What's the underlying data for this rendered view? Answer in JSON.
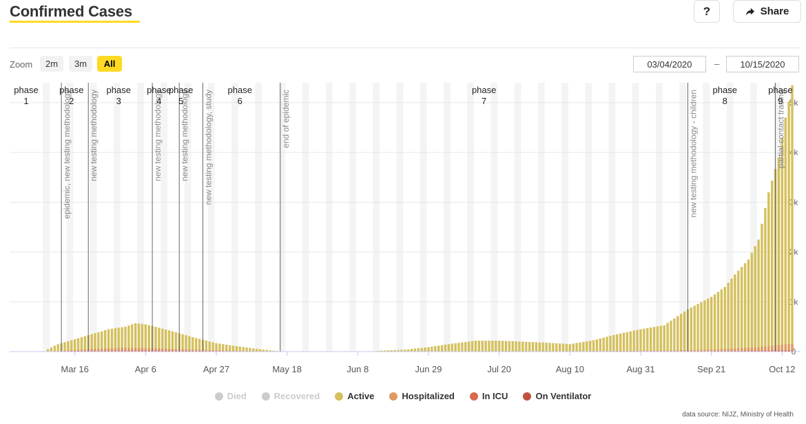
{
  "header": {
    "title": "Confirmed Cases",
    "help_label": "?",
    "share_label": "Share",
    "accent_color": "#ffd922"
  },
  "zoom": {
    "label": "Zoom",
    "buttons": [
      "2m",
      "3m",
      "All"
    ],
    "selected": "All"
  },
  "range": {
    "from": "03/04/2020",
    "separator": "–",
    "to": "10/15/2020"
  },
  "source": "data source: NIJZ, Ministry of Health",
  "chart_data": {
    "type": "bar",
    "stacked": true,
    "x_axis": {
      "start_date": "2020-03-04",
      "end_date": "2020-10-15",
      "tick_labels": [
        {
          "label": "Mar 16",
          "date": "2020-03-16"
        },
        {
          "label": "Apr 6",
          "date": "2020-04-06"
        },
        {
          "label": "Apr 27",
          "date": "2020-04-27"
        },
        {
          "label": "May 18",
          "date": "2020-05-18"
        },
        {
          "label": "Jun 8",
          "date": "2020-06-08"
        },
        {
          "label": "Jun 29",
          "date": "2020-06-29"
        },
        {
          "label": "Jul 20",
          "date": "2020-07-20"
        },
        {
          "label": "Aug 10",
          "date": "2020-08-10"
        },
        {
          "label": "Aug 31",
          "date": "2020-08-31"
        },
        {
          "label": "Sep 21",
          "date": "2020-09-21"
        },
        {
          "label": "Oct 12",
          "date": "2020-10-12"
        }
      ]
    },
    "y_axis": {
      "position": "right",
      "ylim": [
        0,
        5400
      ],
      "ticks": [
        {
          "value": 0,
          "label": "0"
        },
        {
          "value": 1000,
          "label": "1k"
        },
        {
          "value": 2000,
          "label": "2k"
        },
        {
          "value": 3000,
          "label": "3k"
        },
        {
          "value": 4000,
          "label": "4k"
        },
        {
          "value": 5000,
          "label": "5k"
        }
      ]
    },
    "grid": true,
    "weekend_shading": true,
    "legend_position": "bottom-center",
    "legend": [
      {
        "name": "Died",
        "color": "#cccccc",
        "enabled": false
      },
      {
        "name": "Recovered",
        "color": "#cccccc",
        "enabled": false
      },
      {
        "name": "Active",
        "color": "#d4c05c",
        "enabled": true
      },
      {
        "name": "Hospitalized",
        "color": "#de9a5f",
        "enabled": true
      },
      {
        "name": "In ICU",
        "color": "#d86a4f",
        "enabled": true
      },
      {
        "name": "On Ventilator",
        "color": "#bf5340",
        "enabled": true
      }
    ],
    "active_keypoints": [
      [
        "2020-03-04",
        0
      ],
      [
        "2020-03-07",
        0
      ],
      [
        "2020-03-08",
        50
      ],
      [
        "2020-03-11",
        150
      ],
      [
        "2020-03-16",
        250
      ],
      [
        "2020-03-21",
        350
      ],
      [
        "2020-03-26",
        450
      ],
      [
        "2020-03-31",
        500
      ],
      [
        "2020-04-03",
        570
      ],
      [
        "2020-04-06",
        550
      ],
      [
        "2020-04-10",
        480
      ],
      [
        "2020-04-15",
        390
      ],
      [
        "2020-04-20",
        290
      ],
      [
        "2020-04-27",
        170
      ],
      [
        "2020-05-04",
        100
      ],
      [
        "2020-05-11",
        40
      ],
      [
        "2020-05-16",
        5
      ],
      [
        "2020-05-18",
        0
      ],
      [
        "2020-06-12",
        0
      ],
      [
        "2020-06-15",
        20
      ],
      [
        "2020-06-22",
        40
      ],
      [
        "2020-06-29",
        90
      ],
      [
        "2020-07-06",
        160
      ],
      [
        "2020-07-13",
        220
      ],
      [
        "2020-07-20",
        220
      ],
      [
        "2020-07-27",
        200
      ],
      [
        "2020-08-03",
        180
      ],
      [
        "2020-08-10",
        150
      ],
      [
        "2020-08-17",
        230
      ],
      [
        "2020-08-24",
        350
      ],
      [
        "2020-08-31",
        450
      ],
      [
        "2020-09-07",
        530
      ],
      [
        "2020-09-14",
        850
      ],
      [
        "2020-09-21",
        1100
      ],
      [
        "2020-09-25",
        1300
      ],
      [
        "2020-09-28",
        1550
      ],
      [
        "2020-10-02",
        1850
      ],
      [
        "2020-10-05",
        2250
      ],
      [
        "2020-10-08",
        3200
      ],
      [
        "2020-10-11",
        3900
      ],
      [
        "2020-10-13",
        4700
      ],
      [
        "2020-10-15",
        5350
      ]
    ],
    "hospitalized_keypoints": [
      [
        "2020-03-04",
        0
      ],
      [
        "2020-03-12",
        10
      ],
      [
        "2020-03-20",
        50
      ],
      [
        "2020-03-31",
        80
      ],
      [
        "2020-04-08",
        70
      ],
      [
        "2020-04-20",
        40
      ],
      [
        "2020-05-05",
        12
      ],
      [
        "2020-05-15",
        0
      ],
      [
        "2020-06-29",
        0
      ],
      [
        "2020-07-15",
        8
      ],
      [
        "2020-08-10",
        6
      ],
      [
        "2020-09-07",
        20
      ],
      [
        "2020-09-21",
        40
      ],
      [
        "2020-10-05",
        90
      ],
      [
        "2020-10-15",
        160
      ]
    ],
    "icu_keypoints": [
      [
        "2020-03-04",
        0
      ],
      [
        "2020-03-20",
        15
      ],
      [
        "2020-04-06",
        25
      ],
      [
        "2020-04-25",
        10
      ],
      [
        "2020-05-10",
        0
      ],
      [
        "2020-09-21",
        8
      ],
      [
        "2020-10-15",
        30
      ]
    ],
    "annotations": [
      {
        "date": "2020-03-12",
        "type": "line",
        "text": "epidemic, new testing methodology"
      },
      {
        "date": "2020-03-20",
        "type": "line",
        "text": "new testing methodology"
      },
      {
        "date": "2020-04-08",
        "type": "line",
        "text": "new testing methodology"
      },
      {
        "date": "2020-04-16",
        "type": "line",
        "text": "new testing methodology"
      },
      {
        "date": "2020-04-23",
        "type": "line",
        "text": "new testing methodology, study"
      },
      {
        "date": "2020-05-16",
        "type": "line",
        "text": "end of epidemic"
      },
      {
        "date": "2020-09-14",
        "type": "line",
        "text": "new testing methodology - children"
      },
      {
        "date": "2020-10-10",
        "type": "line",
        "text": "partial contact tracing"
      }
    ],
    "phases": [
      {
        "label": "phase",
        "number": "1",
        "start": "2020-03-04",
        "end": "2020-03-10"
      },
      {
        "label": "phase",
        "number": "2",
        "start": "2020-03-10",
        "end": "2020-03-20"
      },
      {
        "label": "phase",
        "number": "3",
        "start": "2020-03-20",
        "end": "2020-04-07"
      },
      {
        "label": "phase",
        "number": "4",
        "start": "2020-04-07",
        "end": "2020-04-13"
      },
      {
        "label": "phase",
        "number": "5",
        "start": "2020-04-13",
        "end": "2020-04-20"
      },
      {
        "label": "phase",
        "number": "6",
        "start": "2020-04-20",
        "end": "2020-05-18"
      },
      {
        "label": "phase",
        "number": "7",
        "start": "2020-05-18",
        "end": "2020-09-12"
      },
      {
        "label": "phase",
        "number": "8",
        "start": "2020-09-12",
        "end": "2020-10-08"
      },
      {
        "label": "phase",
        "number": "9",
        "start": "2020-10-08",
        "end": "2020-10-15"
      }
    ]
  }
}
